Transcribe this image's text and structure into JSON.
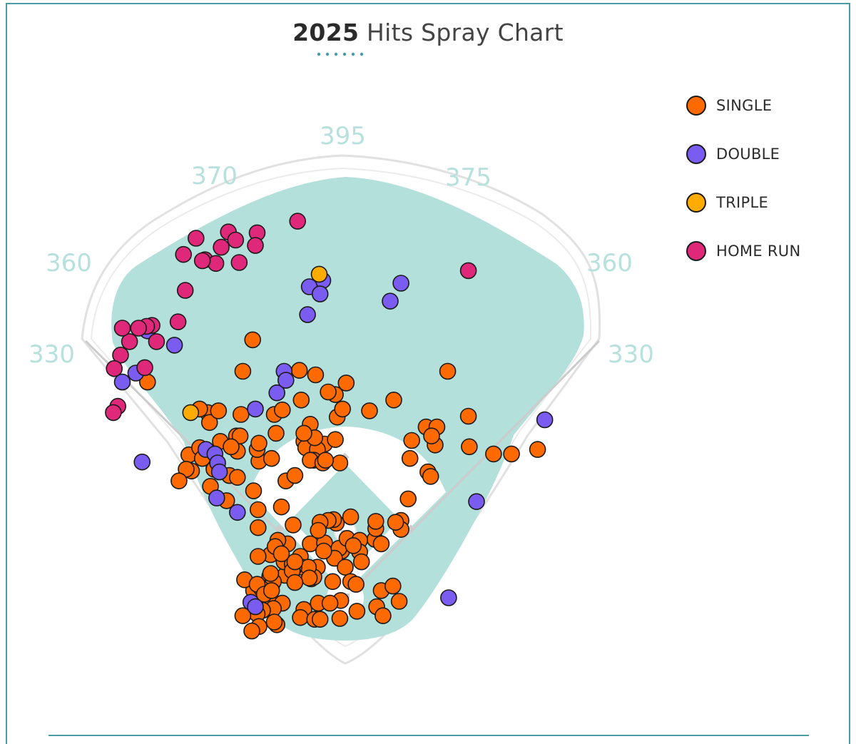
{
  "title": {
    "year": "2025",
    "text": " Hits Spray Chart"
  },
  "colors": {
    "single": "#ff6a00",
    "double": "#7b5cf0",
    "triple": "#ffab00",
    "home_run": "#e0287a",
    "field": "#b4e0dc",
    "accent": "#4a9aa8"
  },
  "legend": [
    {
      "key": "single",
      "label": "SINGLE"
    },
    {
      "key": "double",
      "label": "DOUBLE"
    },
    {
      "key": "triple",
      "label": "TRIPLE"
    },
    {
      "key": "home_run",
      "label": "HOME RUN"
    }
  ],
  "chart_data": {
    "type": "scatter",
    "title": "2025 Hits Spray Chart",
    "xlabel": "",
    "ylabel": "",
    "units": "feet from home plate",
    "coordinate_system": "x: feet toward right field (+) / left field (-), y: feet toward center field",
    "xlim": [
      -420,
      420
    ],
    "ylim": [
      -40,
      450
    ],
    "fence_distances": {
      "left_line": "330",
      "left_center": "360",
      "left_center_gap": "370",
      "center": "395",
      "right_center": "375",
      "right_center_gap": "360",
      "right_line": "330"
    },
    "series": [
      {
        "name": "SINGLE",
        "key": "single",
        "points": [
          [
            -139,
            174
          ],
          [
            -103,
            287
          ],
          [
            -51,
            253
          ],
          [
            -79,
            204
          ],
          [
            -114,
            252
          ],
          [
            -49,
            220
          ],
          [
            -39,
            193
          ],
          [
            -70,
            209
          ],
          [
            -77,
            183
          ],
          [
            -9,
            201
          ],
          [
            -23,
            171
          ],
          [
            -11,
            226
          ],
          [
            -33,
            248
          ],
          [
            1,
            239
          ],
          [
            -11,
            176
          ],
          [
            -6,
            150
          ],
          [
            -66,
            130
          ],
          [
            -102,
            119
          ],
          [
            -96,
            152
          ],
          [
            -82,
            155
          ],
          [
            -19,
            229
          ],
          [
            -46,
            174
          ],
          [
            -44,
            167
          ],
          [
            -56,
            136
          ],
          [
            -71,
            101
          ],
          [
            -150,
            124
          ],
          [
            -220,
            240
          ],
          [
            -153,
            206
          ],
          [
            -151,
            195
          ],
          [
            -174,
            159
          ],
          [
            -171,
            141
          ],
          [
            -146,
            145
          ],
          [
            -121,
            180
          ],
          [
            -98,
            165
          ],
          [
            -177,
            143
          ],
          [
            -162,
            167
          ],
          [
            -185,
            130
          ],
          [
            -97,
            78
          ],
          [
            -50,
            46
          ],
          [
            -31,
            34
          ],
          [
            -48,
            34
          ],
          [
            -58,
            81
          ],
          [
            -97,
            98
          ],
          [
            -58,
            32
          ],
          [
            -38,
            21
          ],
          [
            -35,
            23
          ],
          [
            -41,
            34
          ],
          [
            -57,
            34
          ],
          [
            -84,
            24
          ],
          [
            -67,
            25
          ],
          [
            -40,
            22
          ],
          [
            -75,
            50
          ],
          [
            -83,
            48
          ],
          [
            -97,
            46
          ],
          [
            -68,
            40
          ],
          [
            -59,
            37
          ],
          [
            -59,
            30
          ],
          [
            -56,
            17
          ],
          [
            -120,
            163
          ],
          [
            -117,
            180
          ],
          [
            -96,
            172
          ],
          [
            -129,
            136
          ],
          [
            -132,
            108
          ],
          [
            -146,
            143
          ],
          [
            -159,
            155
          ],
          [
            -120,
            134
          ],
          [
            -127,
            168
          ],
          [
            -31,
            165
          ],
          [
            -34,
            178
          ],
          [
            -46,
            183
          ],
          [
            -35,
            153
          ],
          [
            -64,
            60
          ],
          [
            -75,
            64
          ],
          [
            -78,
            57
          ],
          [
            -71,
            49
          ],
          [
            -39,
            60
          ],
          [
            -23,
            61
          ],
          [
            -4,
            52
          ],
          [
            33,
            65
          ],
          [
            34,
            77
          ],
          [
            62,
            86
          ],
          [
            62,
            76
          ],
          [
            -162,
            210
          ],
          [
            -141,
            208
          ],
          [
            -116,
            204
          ],
          [
            -39,
            153
          ],
          [
            -25,
            150
          ],
          [
            -22,
            153
          ],
          [
            -10,
            83
          ],
          [
            -13,
            87
          ],
          [
            -19,
            86
          ],
          [
            -28,
            84
          ],
          [
            -30,
            75
          ],
          [
            -7,
            55
          ],
          [
            -12,
            44
          ],
          [
            0,
            34
          ],
          [
            6,
            18
          ],
          [
            12,
            15
          ],
          [
            2,
            66
          ],
          [
            6,
            90
          ],
          [
            16,
            64
          ],
          [
            16,
            51
          ],
          [
            9,
            58
          ],
          [
            40,
            60
          ],
          [
            18,
            40
          ],
          [
            40,
            8
          ],
          [
            53,
            13
          ],
          [
            56,
            84
          ],
          [
            70,
            110
          ],
          [
            92,
            140
          ],
          [
            100,
            170
          ],
          [
            90,
            190
          ],
          [
            102,
            190
          ],
          [
            96,
            180
          ],
          [
            72,
            155
          ],
          [
            165,
            160
          ],
          [
            138,
            168
          ],
          [
            185,
            160
          ],
          [
            214,
            165
          ],
          [
            137,
            202
          ],
          [
            114,
            252
          ],
          [
            54,
            220
          ],
          [
            74,
            175
          ],
          [
            95,
            135
          ],
          [
            27,
            208
          ],
          [
            -3,
            210
          ],
          [
            34,
            85
          ],
          [
            -24,
            52
          ],
          [
            -56,
            40
          ],
          [
            -81,
            16
          ],
          [
            -102,
            8
          ],
          [
            -112,
            20
          ],
          [
            -83,
            -4
          ],
          [
            -80,
            18
          ],
          [
            -93,
            10
          ],
          [
            -98,
            15
          ],
          [
            -90,
            4
          ],
          [
            -82,
            8
          ],
          [
            -70,
            -6
          ],
          [
            -83,
            27
          ],
          [
            -80,
            -12
          ],
          [
            -76,
            -30
          ],
          [
            -92,
            -14
          ],
          [
            -98,
            -18
          ],
          [
            -114,
            -20
          ],
          [
            -96,
            -32
          ],
          [
            -104,
            -37
          ],
          [
            -79,
            -27
          ],
          [
            -46,
            -13
          ],
          [
            -50,
            -22
          ],
          [
            -6,
            -23
          ],
          [
            -34,
            -24
          ],
          [
            -28,
            -24
          ],
          [
            -30,
            -6
          ],
          [
            -5,
            -3
          ],
          [
            13,
            -15
          ],
          [
            35,
            -10
          ],
          [
            60,
            -4
          ],
          [
            42,
            -20
          ],
          [
            -14,
            18
          ],
          [
            -17,
            -6
          ]
        ]
      },
      {
        "name": "DOUBLE",
        "key": "double",
        "points": [
          [
            -220,
            297
          ],
          [
            -233,
            250
          ],
          [
            -190,
            281
          ],
          [
            -100,
            210
          ],
          [
            -76,
            228
          ],
          [
            -68,
            252
          ],
          [
            -66,
            242
          ],
          [
            -25,
            353
          ],
          [
            -40,
            346
          ],
          [
            -28,
            338
          ],
          [
            -42,
            315
          ],
          [
            50,
            330
          ],
          [
            62,
            350
          ],
          [
            -226,
            151
          ],
          [
            -248,
            240
          ],
          [
            -155,
            165
          ],
          [
            -145,
            160
          ],
          [
            -142,
            150
          ],
          [
            -140,
            140
          ],
          [
            -143,
            111
          ],
          [
            -120,
            95
          ],
          [
            -105,
            -5
          ],
          [
            -100,
            -10
          ],
          [
            115,
            0
          ],
          [
            146,
            107
          ],
          [
            222,
            198
          ]
        ]
      },
      {
        "name": "TRIPLE",
        "key": "triple",
        "points": [
          [
            -29,
            360
          ],
          [
            -172,
            206
          ]
        ]
      },
      {
        "name": "HOME RUN",
        "key": "home_run",
        "points": [
          [
            -166,
            400
          ],
          [
            -180,
            382
          ],
          [
            -156,
            376
          ],
          [
            -144,
            372
          ],
          [
            -138,
            390
          ],
          [
            -130,
            407
          ],
          [
            -122,
            398
          ],
          [
            -118,
            373
          ],
          [
            -98,
            406
          ],
          [
            -100,
            392
          ],
          [
            -178,
            342
          ],
          [
            -215,
            303
          ],
          [
            -221,
            302
          ],
          [
            -250,
            270
          ],
          [
            -257,
            255
          ],
          [
            -240,
            285
          ],
          [
            -230,
            300
          ],
          [
            -248,
            300
          ],
          [
            -210,
            285
          ],
          [
            -223,
            256
          ],
          [
            -253,
            213
          ],
          [
            -258,
            206
          ],
          [
            -186,
            307
          ],
          [
            -159,
            375
          ],
          [
            -53,
            419
          ],
          [
            137,
            364
          ]
        ]
      }
    ]
  }
}
